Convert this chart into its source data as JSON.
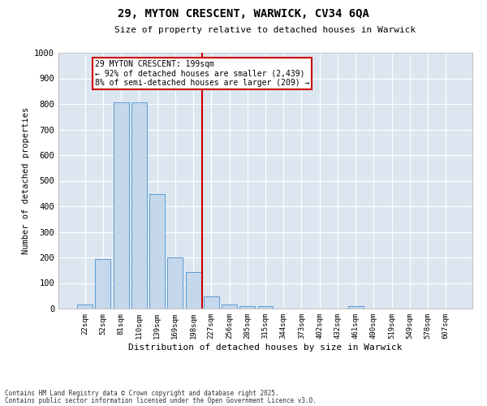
{
  "title1": "29, MYTON CRESCENT, WARWICK, CV34 6QA",
  "title2": "Size of property relative to detached houses in Warwick",
  "xlabel": "Distribution of detached houses by size in Warwick",
  "ylabel": "Number of detached properties",
  "footer1": "Contains HM Land Registry data © Crown copyright and database right 2025.",
  "footer2": "Contains public sector information licensed under the Open Government Licence v3.0.",
  "annotation_line1": "29 MYTON CRESCENT: 199sqm",
  "annotation_line2": "← 92% of detached houses are smaller (2,439)",
  "annotation_line3": "8% of semi-detached houses are larger (209) →",
  "bar_labels": [
    "22sqm",
    "52sqm",
    "81sqm",
    "110sqm",
    "139sqm",
    "169sqm",
    "198sqm",
    "227sqm",
    "256sqm",
    "285sqm",
    "315sqm",
    "344sqm",
    "373sqm",
    "402sqm",
    "432sqm",
    "461sqm",
    "490sqm",
    "519sqm",
    "549sqm",
    "578sqm",
    "607sqm"
  ],
  "bar_values": [
    17,
    195,
    805,
    805,
    447,
    200,
    143,
    48,
    15,
    10,
    8,
    0,
    0,
    0,
    0,
    8,
    0,
    0,
    0,
    0,
    0
  ],
  "bar_color": "#c5d8eb",
  "bar_edge_color": "#5b9bd5",
  "marker_color": "#cc0000",
  "background_color": "#dce6f0",
  "ylim": [
    0,
    1000
  ],
  "yticks": [
    0,
    100,
    200,
    300,
    400,
    500,
    600,
    700,
    800,
    900,
    1000
  ]
}
